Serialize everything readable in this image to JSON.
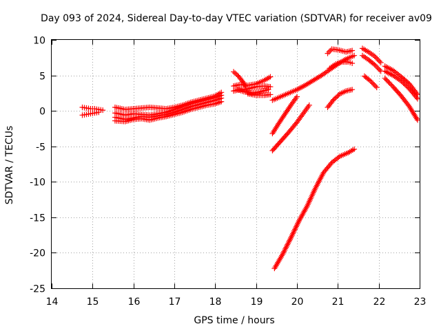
{
  "chart_data": {
    "type": "scatter",
    "title": "Day 093 of 2024, Sidereal Day-to-day VTEC variation (SDTVAR) for receiver av09",
    "xlabel": "GPS time / hours",
    "ylabel": "SDTVAR / TECUs",
    "xlim": [
      14,
      23
    ],
    "ylim": [
      -25,
      10
    ],
    "xticks": [
      14,
      15,
      16,
      17,
      18,
      19,
      20,
      21,
      22,
      23
    ],
    "yticks": [
      -25,
      -20,
      -15,
      -10,
      -5,
      0,
      5,
      10
    ],
    "xtick_labels": [
      "14",
      "15",
      "16",
      "17",
      "18",
      "19",
      "20",
      "21",
      "22",
      "23"
    ],
    "ytick_labels": [
      "-25",
      "-20",
      "-15",
      "-10",
      "-5",
      "0",
      "5",
      "10"
    ],
    "grid": true,
    "marker": "plus",
    "marker_color": "#ff0000",
    "series": [
      {
        "x": [
          14.75,
          14.85,
          14.95,
          15.05,
          15.15,
          15.25
        ],
        "y": [
          0.5,
          0.4,
          0.3,
          0.3,
          0.2,
          0.1
        ]
      },
      {
        "x": [
          14.75,
          14.85,
          14.95,
          15.05,
          15.15
        ],
        "y": [
          -0.6,
          -0.5,
          -0.4,
          -0.3,
          -0.2
        ]
      },
      {
        "x": [
          15.55,
          15.8,
          16.0,
          16.2,
          16.4,
          16.6,
          16.8,
          17.0,
          17.2,
          17.4,
          17.6,
          17.8,
          18.0,
          18.15
        ],
        "y": [
          0.5,
          0.2,
          0.3,
          0.4,
          0.5,
          0.4,
          0.3,
          0.5,
          0.8,
          1.2,
          1.5,
          1.8,
          2.1,
          2.6
        ]
      },
      {
        "x": [
          15.55,
          15.8,
          16.0,
          16.2,
          16.4,
          16.6,
          16.8,
          17.0,
          17.2,
          17.4,
          17.6,
          17.8,
          18.0,
          18.15
        ],
        "y": [
          -0.3,
          -0.6,
          -0.4,
          -0.5,
          -0.6,
          -0.4,
          -0.2,
          0.2,
          0.6,
          1.0,
          1.3,
          1.6,
          1.9,
          2.2
        ]
      },
      {
        "x": [
          15.55,
          15.8,
          16.0,
          16.2,
          16.4,
          16.6,
          16.8,
          17.0,
          17.2,
          17.4,
          17.6,
          17.8,
          18.0,
          18.15
        ],
        "y": [
          -0.9,
          -1.2,
          -1.0,
          -0.8,
          -0.9,
          -0.7,
          -0.5,
          -0.2,
          0.2,
          0.6,
          0.9,
          1.2,
          1.5,
          1.8
        ]
      },
      {
        "x": [
          15.55,
          15.8,
          16.0,
          16.2,
          16.4,
          16.6,
          16.8,
          17.0,
          17.2,
          17.4,
          17.6,
          17.8,
          18.0,
          18.15
        ],
        "y": [
          -1.4,
          -1.5,
          -1.2,
          -1.1,
          -1.3,
          -1.0,
          -0.8,
          -0.5,
          -0.2,
          0.2,
          0.5,
          0.8,
          1.0,
          1.3
        ]
      },
      {
        "x": [
          18.45,
          18.55,
          18.65,
          18.75
        ],
        "y": [
          5.5,
          5.0,
          4.3,
          3.4
        ]
      },
      {
        "x": [
          18.45,
          18.6,
          18.8,
          19.0,
          19.2,
          19.35
        ],
        "y": [
          3.5,
          3.7,
          3.6,
          3.8,
          4.3,
          4.8
        ]
      },
      {
        "x": [
          18.45,
          18.6,
          18.8,
          19.0,
          19.2,
          19.35
        ],
        "y": [
          2.8,
          3.0,
          3.1,
          3.4,
          3.5,
          3.4
        ]
      },
      {
        "x": [
          18.55,
          18.7,
          18.9,
          19.1,
          19.3
        ],
        "y": [
          3.0,
          2.7,
          2.5,
          2.7,
          3.0
        ]
      },
      {
        "x": [
          18.8,
          19.0,
          19.2,
          19.35
        ],
        "y": [
          2.4,
          2.2,
          2.2,
          2.3
        ]
      },
      {
        "x": [
          19.4,
          19.6,
          19.8,
          20.0,
          20.2,
          20.4,
          20.6,
          20.8,
          21.0,
          21.2,
          21.4
        ],
        "y": [
          1.5,
          2.0,
          2.5,
          3.0,
          3.6,
          4.3,
          5.0,
          5.8,
          6.6,
          7.3,
          7.8
        ]
      },
      {
        "x": [
          20.75,
          20.85,
          21.0,
          21.2,
          21.35
        ],
        "y": [
          8.1,
          8.7,
          8.6,
          8.3,
          8.5
        ]
      },
      {
        "x": [
          20.8,
          20.95,
          21.1,
          21.25,
          21.35
        ],
        "y": [
          6.0,
          6.6,
          6.9,
          6.9,
          6.7
        ]
      },
      {
        "x": [
          19.4,
          19.55,
          19.7,
          19.85,
          20.0
        ],
        "y": [
          -3.2,
          -1.8,
          -0.5,
          0.8,
          2.0
        ]
      },
      {
        "x": [
          19.4,
          19.6,
          19.8,
          20.0,
          20.15,
          20.3
        ],
        "y": [
          -5.6,
          -4.3,
          -3.0,
          -1.6,
          -0.4,
          0.8
        ]
      },
      {
        "x": [
          20.75,
          20.9,
          21.05,
          21.2,
          21.35
        ],
        "y": [
          0.5,
          1.6,
          2.4,
          2.8,
          3.0
        ]
      },
      {
        "x": [
          19.45,
          19.65,
          19.85,
          20.05,
          20.25,
          20.45,
          20.65,
          20.85,
          21.05,
          21.25,
          21.4
        ],
        "y": [
          -22.2,
          -20.2,
          -17.9,
          -15.5,
          -13.4,
          -10.9,
          -8.7,
          -7.3,
          -6.4,
          -5.9,
          -5.4
        ]
      },
      {
        "x": [
          21.6,
          21.75,
          21.9,
          22.05
        ],
        "y": [
          8.8,
          8.3,
          7.7,
          6.8
        ]
      },
      {
        "x": [
          21.6,
          21.75,
          21.9,
          22.05
        ],
        "y": [
          7.8,
          7.2,
          6.5,
          5.6
        ]
      },
      {
        "x": [
          21.65,
          21.8,
          21.95
        ],
        "y": [
          4.9,
          4.2,
          3.3
        ]
      },
      {
        "x": [
          22.15,
          22.35,
          22.55,
          22.75,
          22.95
        ],
        "y": [
          6.3,
          5.7,
          4.8,
          3.8,
          2.3
        ]
      },
      {
        "x": [
          22.15,
          22.35,
          22.55,
          22.75,
          22.95
        ],
        "y": [
          5.6,
          5.0,
          4.2,
          3.1,
          1.7
        ]
      },
      {
        "x": [
          22.15,
          22.35,
          22.55,
          22.75,
          22.95
        ],
        "y": [
          4.6,
          3.4,
          2.1,
          0.6,
          -1.3
        ]
      }
    ]
  }
}
